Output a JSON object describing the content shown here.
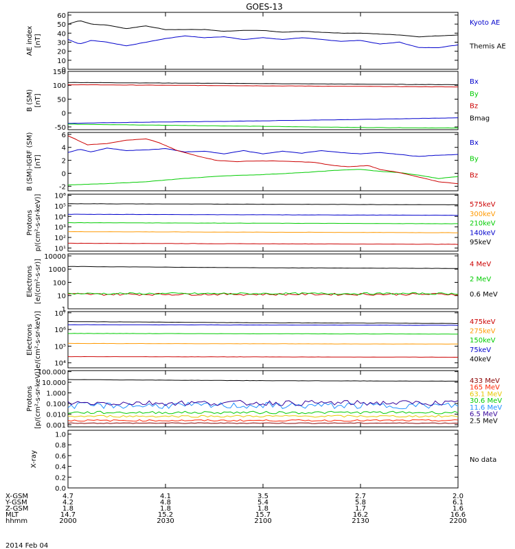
{
  "title": "GOES-13",
  "date": "2014 Feb 04",
  "chart_data": [
    {
      "type": "line",
      "ylabel_lines": [
        "AE index",
        "[nT]"
      ],
      "yticks": [
        "60",
        "50",
        "40",
        "30",
        "20",
        "10",
        "0"
      ],
      "ylim": [
        0,
        63
      ],
      "log": false,
      "x": [
        2000,
        2200
      ],
      "series": [
        {
          "name": "Kyoto AE",
          "color": "#0000cc",
          "shape": [
            [
              0,
              33
            ],
            [
              0.03,
              28
            ],
            [
              0.06,
              32
            ],
            [
              0.1,
              30
            ],
            [
              0.15,
              26
            ],
            [
              0.2,
              30
            ],
            [
              0.25,
              34
            ],
            [
              0.3,
              37
            ],
            [
              0.35,
              35
            ],
            [
              0.4,
              36
            ],
            [
              0.45,
              33
            ],
            [
              0.5,
              35
            ],
            [
              0.55,
              33
            ],
            [
              0.6,
              35
            ],
            [
              0.65,
              33
            ],
            [
              0.7,
              31
            ],
            [
              0.75,
              32
            ],
            [
              0.8,
              28
            ],
            [
              0.85,
              30
            ],
            [
              0.9,
              24
            ],
            [
              0.95,
              24
            ],
            [
              1,
              27
            ]
          ]
        },
        {
          "name": "Themis AE",
          "color": "#000000",
          "shape": [
            [
              0,
              50
            ],
            [
              0.03,
              54
            ],
            [
              0.06,
              50
            ],
            [
              0.1,
              49
            ],
            [
              0.15,
              45
            ],
            [
              0.2,
              48
            ],
            [
              0.25,
              44
            ],
            [
              0.3,
              44
            ],
            [
              0.35,
              44
            ],
            [
              0.4,
              42
            ],
            [
              0.45,
              43
            ],
            [
              0.5,
              43
            ],
            [
              0.55,
              41
            ],
            [
              0.6,
              42
            ],
            [
              0.65,
              41
            ],
            [
              0.7,
              40
            ],
            [
              0.75,
              40
            ],
            [
              0.8,
              39
            ],
            [
              0.85,
              38
            ],
            [
              0.9,
              36
            ],
            [
              0.95,
              37
            ],
            [
              1,
              38
            ]
          ]
        }
      ]
    },
    {
      "type": "line",
      "ylabel_lines": [
        "B (SM)",
        "[nT]"
      ],
      "yticks": [
        "150",
        "100",
        "50",
        "0",
        "-50"
      ],
      "ylim": [
        -60,
        150
      ],
      "log": false,
      "x": [
        2000,
        2200
      ],
      "series": [
        {
          "name": "Bx",
          "color": "#0000cc",
          "shape": [
            [
              0,
              -37
            ],
            [
              0.2,
              -33
            ],
            [
              0.4,
              -30
            ],
            [
              0.6,
              -26
            ],
            [
              0.8,
              -22
            ],
            [
              1,
              -17
            ]
          ]
        },
        {
          "name": "By",
          "color": "#00cc00",
          "shape": [
            [
              0,
              -40
            ],
            [
              0.25,
              -44
            ],
            [
              0.5,
              -48
            ],
            [
              0.75,
              -52
            ],
            [
              1,
              -54
            ]
          ]
        },
        {
          "name": "Bz",
          "color": "#cc0000",
          "shape": [
            [
              0,
              102
            ],
            [
              0.25,
              100
            ],
            [
              0.5,
              98
            ],
            [
              0.75,
              96
            ],
            [
              1,
              94
            ]
          ]
        },
        {
          "name": "Bmag",
          "color": "#000000",
          "shape": [
            [
              0,
              110
            ],
            [
              0.25,
              108
            ],
            [
              0.5,
              106
            ],
            [
              0.75,
              104
            ],
            [
              1,
              102
            ]
          ]
        }
      ]
    },
    {
      "type": "line",
      "ylabel_lines": [
        "B (SM)-IGRF (SM)",
        "[nT]"
      ],
      "yticks": [
        "6",
        "4",
        "2",
        "0",
        "-2"
      ],
      "ylim": [
        -2.7,
        6.3
      ],
      "log": false,
      "x": [
        2000,
        2200
      ],
      "series": [
        {
          "name": "Bx",
          "color": "#0000cc",
          "shape": [
            [
              0,
              3.2
            ],
            [
              0.03,
              3.7
            ],
            [
              0.06,
              3.3
            ],
            [
              0.1,
              3.9
            ],
            [
              0.15,
              3.5
            ],
            [
              0.2,
              3.6
            ],
            [
              0.25,
              3.8
            ],
            [
              0.3,
              3.3
            ],
            [
              0.35,
              3.4
            ],
            [
              0.4,
              3.0
            ],
            [
              0.45,
              3.5
            ],
            [
              0.5,
              3.0
            ],
            [
              0.55,
              3.4
            ],
            [
              0.6,
              3.1
            ],
            [
              0.65,
              3.5
            ],
            [
              0.7,
              3.2
            ],
            [
              0.75,
              3.0
            ],
            [
              0.8,
              3.2
            ],
            [
              0.85,
              2.9
            ],
            [
              0.9,
              2.6
            ],
            [
              0.95,
              2.8
            ],
            [
              1,
              2.9
            ]
          ]
        },
        {
          "name": "By",
          "color": "#00cc00",
          "shape": [
            [
              0,
              -1.8
            ],
            [
              0.1,
              -1.6
            ],
            [
              0.2,
              -1.3
            ],
            [
              0.3,
              -0.8
            ],
            [
              0.4,
              -0.4
            ],
            [
              0.5,
              -0.2
            ],
            [
              0.6,
              0.1
            ],
            [
              0.7,
              0.5
            ],
            [
              0.75,
              0.6
            ],
            [
              0.8,
              0.3
            ],
            [
              0.85,
              0.1
            ],
            [
              0.9,
              -0.3
            ],
            [
              0.95,
              -0.8
            ],
            [
              1,
              -0.5
            ]
          ]
        },
        {
          "name": "Bz",
          "color": "#cc0000",
          "shape": [
            [
              0,
              5.8
            ],
            [
              0.05,
              4.4
            ],
            [
              0.1,
              4.6
            ],
            [
              0.15,
              5.1
            ],
            [
              0.2,
              5.3
            ],
            [
              0.23,
              4.8
            ],
            [
              0.28,
              3.5
            ],
            [
              0.33,
              2.7
            ],
            [
              0.38,
              2.0
            ],
            [
              0.43,
              1.8
            ],
            [
              0.48,
              1.9
            ],
            [
              0.53,
              1.9
            ],
            [
              0.58,
              1.8
            ],
            [
              0.63,
              1.7
            ],
            [
              0.68,
              1.2
            ],
            [
              0.72,
              1.0
            ],
            [
              0.77,
              1.2
            ],
            [
              0.8,
              0.6
            ],
            [
              0.85,
              0.1
            ],
            [
              0.9,
              -0.6
            ],
            [
              0.95,
              -1.3
            ],
            [
              1,
              -1.6
            ]
          ]
        }
      ]
    },
    {
      "type": "line",
      "ylabel_lines": [
        "Protons",
        "p/(cm²-s-sr-keV)]"
      ],
      "yticks": [
        "10⁶",
        "10⁵",
        "10⁴",
        "10³",
        "10²",
        "10¹"
      ],
      "ylim": [
        0.7,
        6.1
      ],
      "log": true,
      "x": [
        2000,
        2200
      ],
      "series": [
        {
          "name": "575keV",
          "color": "#cc0000",
          "shape": [
            [
              0,
              1.45
            ],
            [
              0.5,
              1.4
            ],
            [
              1,
              1.35
            ]
          ]
        },
        {
          "name": "300keV",
          "color": "#ff9900",
          "shape": [
            [
              0,
              2.55
            ],
            [
              0.5,
              2.5
            ],
            [
              1,
              2.45
            ]
          ]
        },
        {
          "name": "210keV",
          "color": "#00cc00",
          "shape": [
            [
              0,
              3.4
            ],
            [
              0.5,
              3.35
            ],
            [
              1,
              3.3
            ]
          ]
        },
        {
          "name": "140keV",
          "color": "#0000cc",
          "shape": [
            [
              0,
              4.2
            ],
            [
              0.5,
              4.15
            ],
            [
              1,
              4.1
            ]
          ]
        },
        {
          "name": "95keV",
          "color": "#000000",
          "shape": [
            [
              0,
              5.2
            ],
            [
              0.5,
              5.15
            ],
            [
              1,
              5.1
            ]
          ]
        }
      ]
    },
    {
      "type": "line",
      "ylabel_lines": [
        "Electrons",
        "[e/(cm²-s-sr)]"
      ],
      "yticks": [
        "10000",
        "1000",
        "100",
        "10",
        "1"
      ],
      "ylim": [
        0,
        4.15
      ],
      "log": true,
      "x": [
        2000,
        2200
      ],
      "series": [
        {
          "name": "4 MeV",
          "color": "#cc0000",
          "shape": [
            [
              0,
              1.1
            ],
            [
              1,
              1.1
            ]
          ],
          "jitter": 0.08
        },
        {
          "name": "2 MeV",
          "color": "#00cc00",
          "shape": [
            [
              0,
              1.15
            ],
            [
              1,
              1.15
            ]
          ],
          "jitter": 0.07
        },
        {
          "name": "0.6 MeV",
          "color": "#000000",
          "shape": [
            [
              0,
              3.2
            ],
            [
              0.5,
              3.1
            ],
            [
              1,
              3.05
            ]
          ]
        }
      ]
    },
    {
      "type": "line",
      "ylabel_lines": [
        "Electrons",
        "e/(cm²-s-sr-keV)]"
      ],
      "yticks": [
        "10⁷",
        "10⁶",
        "10⁵",
        "10⁴"
      ],
      "ylim": [
        2.6,
        7.1
      ],
      "log": true,
      "x": [
        2000,
        2200
      ],
      "series": [
        {
          "name": "475keV",
          "color": "#cc0000",
          "shape": [
            [
              0,
              3.5
            ],
            [
              1,
              3.45
            ]
          ]
        },
        {
          "name": "275keV",
          "color": "#ff9900",
          "shape": [
            [
              0,
              4.55
            ],
            [
              1,
              4.5
            ]
          ]
        },
        {
          "name": "150keV",
          "color": "#00cc00",
          "shape": [
            [
              0,
              5.35
            ],
            [
              1,
              5.3
            ]
          ]
        },
        {
          "name": "75keV",
          "color": "#0000cc",
          "shape": [
            [
              0,
              6.05
            ],
            [
              1,
              6.0
            ]
          ]
        },
        {
          "name": "40keV",
          "color": "#000000",
          "shape": [
            [
              0,
              6.3
            ],
            [
              0.5,
              6.2
            ],
            [
              1,
              6.15
            ]
          ]
        }
      ]
    },
    {
      "type": "line",
      "ylabel_lines": [
        "Protons",
        "[p/(cm²-s-sr-keV)]"
      ],
      "yticks": [
        "100.000",
        "10.000",
        "1.000",
        "0.100",
        "0.010",
        "0.001"
      ],
      "ylim": [
        -3.2,
        2.1
      ],
      "log": true,
      "x": [
        2000,
        2200
      ],
      "series": [
        {
          "name": "433 MeV",
          "color": "#8b0000",
          "shape": [
            [
              0,
              -2.85
            ],
            [
              1,
              -2.85
            ]
          ],
          "jitter": 0.04
        },
        {
          "name": "165 MeV",
          "color": "#ff2200",
          "shape": [
            [
              0,
              -2.6
            ],
            [
              1,
              -2.6
            ]
          ],
          "jitter": 0.08
        },
        {
          "name": "63.1 MeV",
          "color": "#e6c800",
          "shape": [
            [
              0,
              -2.2
            ],
            [
              1,
              -2.2
            ]
          ],
          "jitter": 0.1
        },
        {
          "name": "30.6 MeV",
          "color": "#00cc00",
          "shape": [
            [
              0,
              -1.85
            ],
            [
              1,
              -1.85
            ]
          ],
          "jitter": 0.12
        },
        {
          "name": "11.6 MeV",
          "color": "#1e90ff",
          "shape": [
            [
              0,
              -1.2
            ],
            [
              1,
              -1.2
            ]
          ],
          "jitter": 0.3
        },
        {
          "name": "6.5 MeV",
          "color": "#330099",
          "shape": [
            [
              0,
              -0.95
            ],
            [
              1,
              -0.95
            ]
          ],
          "jitter": 0.25
        },
        {
          "name": "2.5 MeV",
          "color": "#000000",
          "shape": [
            [
              0,
              1.25
            ],
            [
              0.5,
              1.15
            ],
            [
              1,
              1.1
            ]
          ]
        }
      ]
    },
    {
      "type": "line",
      "ylabel_lines": [
        "X-ray"
      ],
      "yticks": [
        "1.0",
        "0.8",
        "0.6",
        "0.4",
        "0.2",
        "0.0"
      ],
      "ylim": [
        0,
        1.07
      ],
      "log": false,
      "x": [
        2000,
        2200
      ],
      "series": [],
      "note": "No data"
    }
  ],
  "xaxis": {
    "rows": [
      {
        "label": "X-GSM",
        "values": [
          "4.7",
          "4.1",
          "3.5",
          "2.7",
          "2.0"
        ]
      },
      {
        "label": "Y-GSM",
        "values": [
          "4.2",
          "4.8",
          "5.4",
          "5.8",
          "6.1"
        ]
      },
      {
        "label": "Z-GSM",
        "values": [
          "1.8",
          "1.8",
          "1.8",
          "1.7",
          "1.6"
        ]
      },
      {
        "label": "MLT",
        "values": [
          "14.7",
          "15.2",
          "15.7",
          "16.2",
          "16.6"
        ]
      },
      {
        "label": "hhmm",
        "values": [
          "2000",
          "2030",
          "2100",
          "2130",
          "2200"
        ]
      }
    ]
  }
}
